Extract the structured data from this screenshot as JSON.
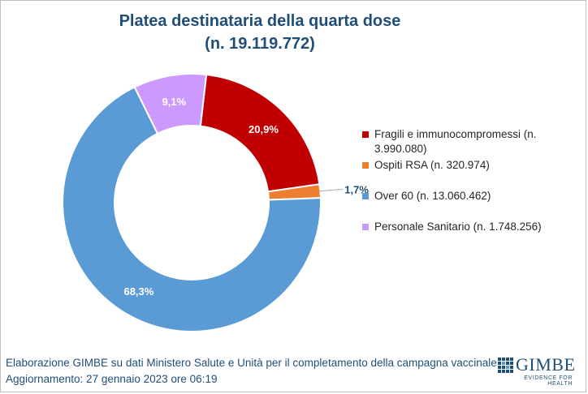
{
  "chart_data": {
    "type": "pie",
    "variant": "donut",
    "title": "Platea destinataria della quarta dose",
    "subtitle": "(n. 19.119.772)",
    "slices": [
      {
        "label": "Fragili e immunocompromessi (n. 3.990.080)",
        "value": 20.9,
        "value_label": "20,9%",
        "color": "#c00000"
      },
      {
        "label": "Ospiti RSA (n. 320.974)",
        "value": 1.7,
        "value_label": "1,7%",
        "color": "#ed7d31"
      },
      {
        "label": "Over 60 (n. 13.060.462)",
        "value": 68.3,
        "value_label": "68,3%",
        "color": "#5b9bd5"
      },
      {
        "label": "Personale Sanitario (n. 1.748.256)",
        "value": 9.1,
        "value_label": "9,1%",
        "color": "#cc99ff"
      }
    ],
    "legend_position": "right"
  },
  "footer": {
    "source": "Elaborazione GIMBE su dati Ministero Salute e Unità per il completamento della campagna vaccinale",
    "updated": "Aggiornamento: 27 gennaio 2023 ore 06:19"
  },
  "logo": {
    "name": "GIMBE",
    "tagline": "EVIDENCE FOR HEALTH",
    "color": "#1f4e79"
  },
  "icons": {
    "logo_mark": "gimbe-logo-icon"
  }
}
